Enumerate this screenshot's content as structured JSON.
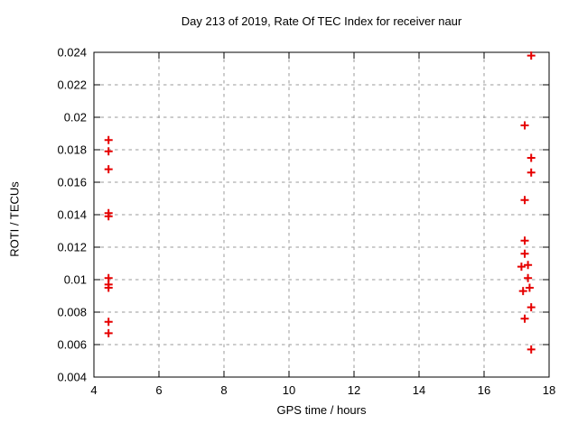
{
  "title": "Day 213 of 2019, Rate Of TEC Index for receiver naur",
  "chart_data": {
    "type": "scatter",
    "title": "Day 213 of 2019, Rate Of TEC Index for receiver naur",
    "xlabel": "GPS time / hours",
    "ylabel": "ROTI / TECUs",
    "xlim": [
      4,
      18
    ],
    "ylim": [
      0.004,
      0.024
    ],
    "xtick_values": [
      4,
      6,
      8,
      10,
      12,
      14,
      16,
      18
    ],
    "xtick_labels": [
      "4",
      "6",
      "8",
      "10",
      "12",
      "14",
      "16",
      "18"
    ],
    "ytick_values": [
      0.004,
      0.006,
      0.008,
      0.01,
      0.012,
      0.014,
      0.016,
      0.018,
      0.02,
      0.022,
      0.024
    ],
    "ytick_labels": [
      "0.004",
      "0.006",
      "0.008",
      "0.01",
      "0.012",
      "0.014",
      "0.016",
      "0.018",
      "0.02",
      "0.022",
      "0.024"
    ],
    "grid": "both-dashed",
    "legend": "none",
    "marker": "plus",
    "marker_color": "#e60000",
    "grid_color": "#999999",
    "axis_color": "#000000",
    "background_color": "#ffffff",
    "series": [
      {
        "name": "ROTI",
        "points": [
          [
            4.45,
            0.0186
          ],
          [
            4.45,
            0.0179
          ],
          [
            4.45,
            0.0168
          ],
          [
            4.45,
            0.0141
          ],
          [
            4.45,
            0.0139
          ],
          [
            4.45,
            0.0101
          ],
          [
            4.45,
            0.0097
          ],
          [
            4.45,
            0.0095
          ],
          [
            4.45,
            0.0074
          ],
          [
            4.45,
            0.0067
          ],
          [
            17.45,
            0.0238
          ],
          [
            17.25,
            0.0195
          ],
          [
            17.45,
            0.0175
          ],
          [
            17.45,
            0.0166
          ],
          [
            17.25,
            0.0149
          ],
          [
            17.25,
            0.0124
          ],
          [
            17.25,
            0.0116
          ],
          [
            17.15,
            0.0108
          ],
          [
            17.35,
            0.0109
          ],
          [
            17.35,
            0.0101
          ],
          [
            17.4,
            0.0095
          ],
          [
            17.2,
            0.0093
          ],
          [
            17.45,
            0.0083
          ],
          [
            17.25,
            0.0076
          ],
          [
            17.45,
            0.0057
          ]
        ]
      }
    ]
  }
}
